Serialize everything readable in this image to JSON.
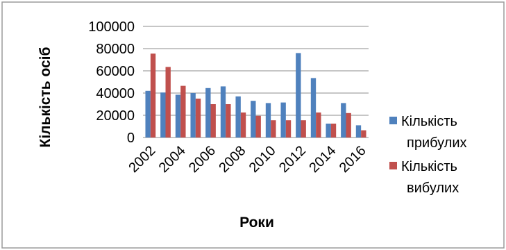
{
  "chart_data": {
    "type": "bar",
    "categories": [
      "2002",
      "2003",
      "2004",
      "2005",
      "2006",
      "2007",
      "2008",
      "2009",
      "2010",
      "2011",
      "2012",
      "2013",
      "2014",
      "2015",
      "2016"
    ],
    "x_tick_labels": [
      "2002",
      "2004",
      "2006",
      "2008",
      "2010",
      "2012",
      "2014",
      "2016"
    ],
    "y_tick_labels": [
      "0",
      "20000",
      "40000",
      "60000",
      "80000",
      "100000"
    ],
    "ylim": [
      0,
      100000
    ],
    "ylabel": "Кількість осіб",
    "xlabel": "Роки",
    "grid": true,
    "legend_position": "right",
    "series": [
      {
        "name_line1": "Кількість",
        "name_line2": "прибулих",
        "color": "#4F81BD",
        "values": [
          42000,
          40500,
          38500,
          40000,
          44500,
          46000,
          37000,
          33000,
          31000,
          31500,
          76000,
          53500,
          12500,
          31000,
          11000
        ]
      },
      {
        "name_line1": "Кількість",
        "name_line2": "вибулих",
        "color": "#C0504D",
        "values": [
          75500,
          63500,
          46500,
          35000,
          30000,
          30000,
          22500,
          19500,
          15500,
          15500,
          15500,
          22500,
          12500,
          22000,
          6500
        ]
      }
    ]
  }
}
